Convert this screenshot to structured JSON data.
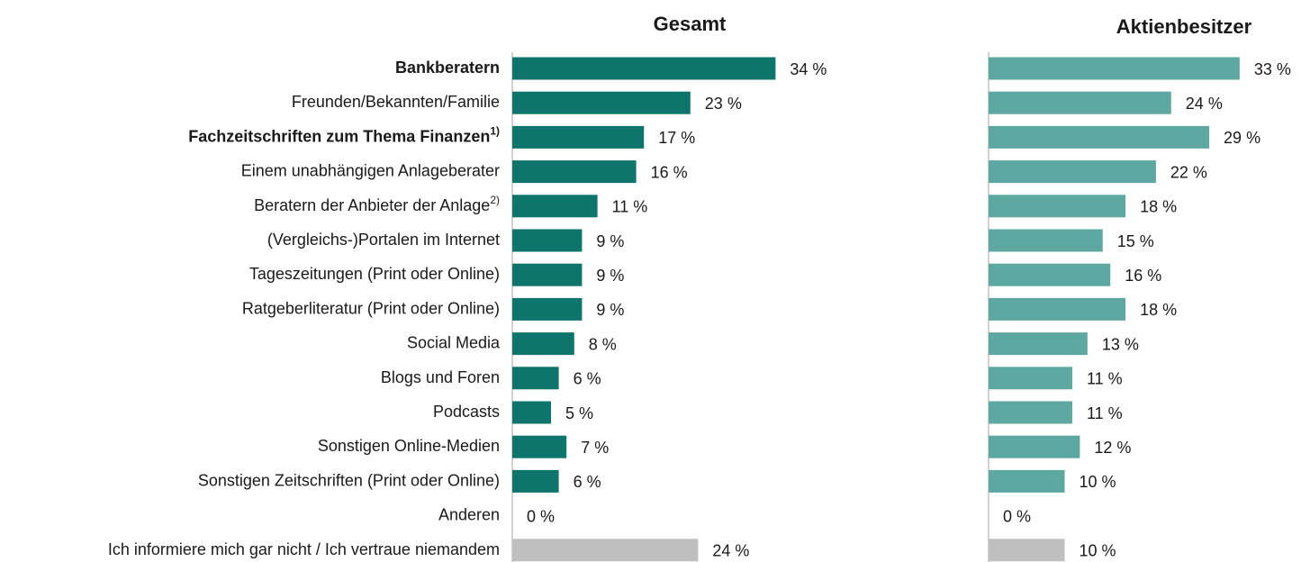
{
  "chart_data": [
    {
      "type": "bar",
      "orientation": "horizontal",
      "title": "Gesamt",
      "categories": [
        "Bankberatern",
        "Freunden/Bekannten/Familie",
        "Fachzeitschriften zum Thema Finanzen",
        "Einem unabhängigen Anlageberater",
        "Beratern der Anbieter der Anlage",
        "(Vergleichs-)Portalen im Internet",
        "Tageszeitungen (Print oder Online)",
        "Ratgeberliteratur (Print oder Online)",
        "Social Media",
        "Blogs und Foren",
        "Podcasts",
        "Sonstigen Online-Medien",
        "Sonstigen Zeitschriften (Print oder Online)",
        "Anderen",
        "Ich informiere mich gar nicht / Ich vertraue niemandem"
      ],
      "category_footnotes": [
        null,
        null,
        "1)",
        null,
        "2)",
        null,
        null,
        null,
        null,
        null,
        null,
        null,
        null,
        null,
        null
      ],
      "highlighted_categories": [
        0,
        2
      ],
      "highlight_color": "#1a7a72",
      "values": [
        34,
        23,
        17,
        16,
        11,
        9,
        9,
        9,
        8,
        6,
        5,
        7,
        6,
        0,
        24
      ],
      "value_labels": [
        "34 %",
        "23 %",
        "17 %",
        "16 %",
        "11 %",
        "9 %",
        "9 %",
        "9 %",
        "8 %",
        "6 %",
        "5 %",
        "7 %",
        "6 %",
        "0 %",
        "24 %"
      ],
      "colors": [
        "#0e756d",
        "#0e756d",
        "#0e756d",
        "#0e756d",
        "#0e756d",
        "#0e756d",
        "#0e756d",
        "#0e756d",
        "#0e756d",
        "#0e756d",
        "#0e756d",
        "#0e756d",
        "#0e756d",
        "#0e756d",
        "#bfbfbf"
      ],
      "xlim": [
        0,
        40
      ]
    },
    {
      "type": "bar",
      "orientation": "horizontal",
      "title": "Aktienbesitzer",
      "values": [
        33,
        24,
        29,
        22,
        18,
        15,
        16,
        18,
        13,
        11,
        11,
        12,
        10,
        0,
        10
      ],
      "value_labels": [
        "33 %",
        "24 %",
        "29 %",
        "22 %",
        "18 %",
        "15 %",
        "16 %",
        "18 %",
        "13 %",
        "11 %",
        "11 %",
        "12 %",
        "10 %",
        "0 %",
        "10 %"
      ],
      "colors": [
        "#5ea8a2",
        "#5ea8a2",
        "#5ea8a2",
        "#5ea8a2",
        "#5ea8a2",
        "#5ea8a2",
        "#5ea8a2",
        "#5ea8a2",
        "#5ea8a2",
        "#5ea8a2",
        "#5ea8a2",
        "#5ea8a2",
        "#5ea8a2",
        "#5ea8a2",
        "#bfbfbf"
      ],
      "xlim": [
        0,
        40
      ]
    }
  ]
}
